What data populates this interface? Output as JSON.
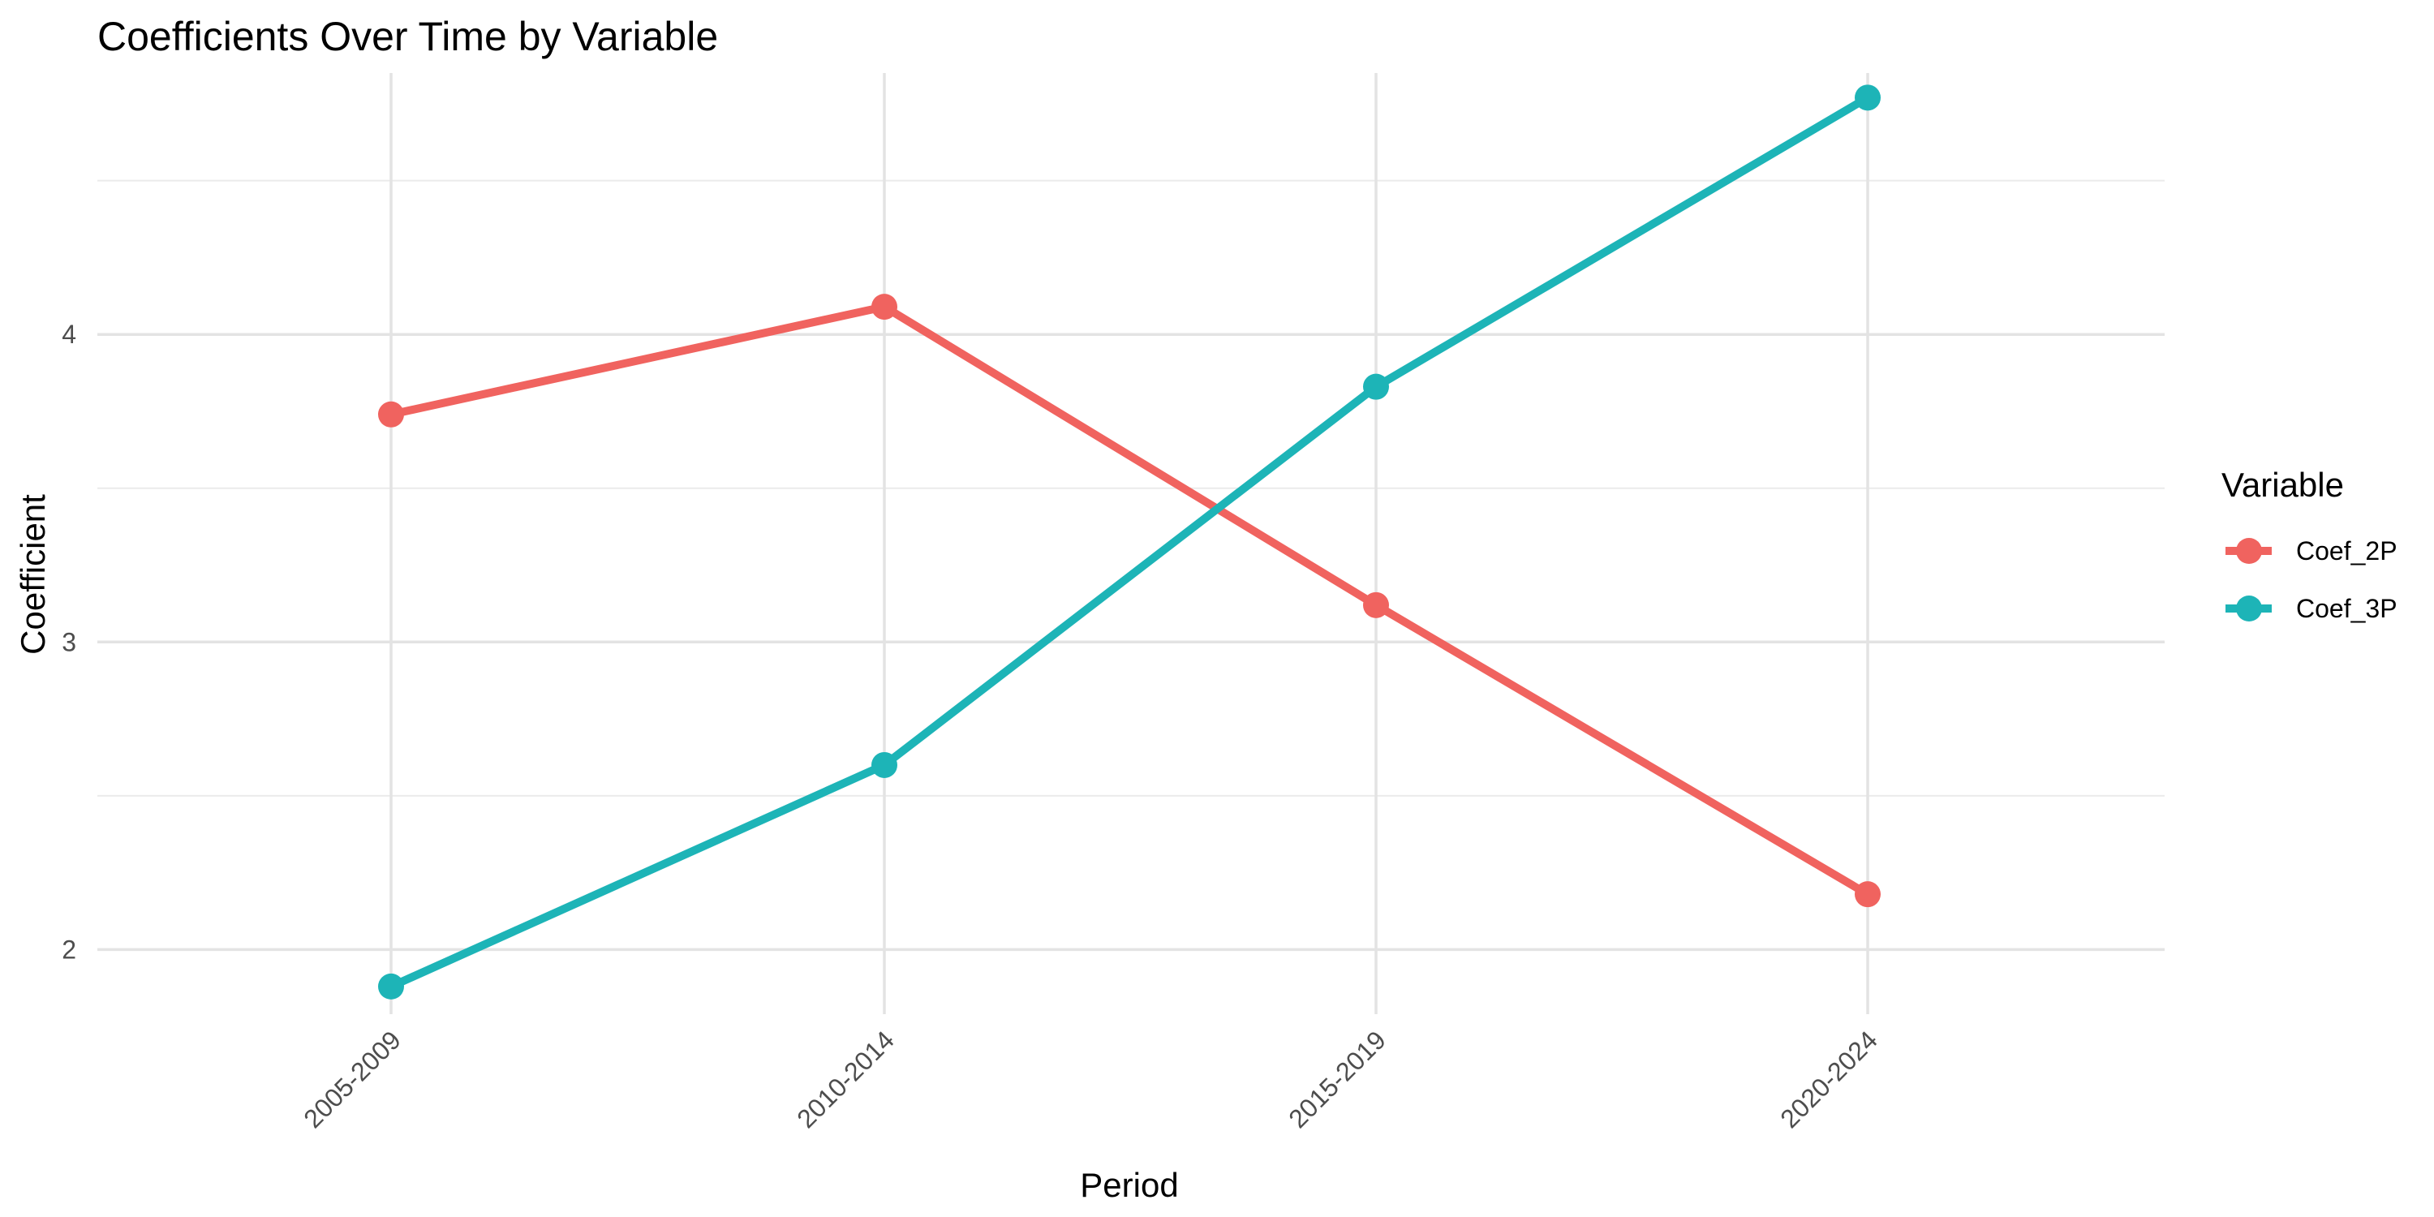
{
  "chart_data": {
    "type": "line",
    "title": "Coefficients Over Time by Variable",
    "xlabel": "Period",
    "ylabel": "Coefficient",
    "categories": [
      "2005-2009",
      "2010-2014",
      "2015-2019",
      "2020-2024"
    ],
    "ylim": [
      1.79,
      4.85
    ],
    "yticks": [
      2,
      3,
      4
    ],
    "grid": true,
    "legend": {
      "title": "Variable",
      "position": "right"
    },
    "series": [
      {
        "name": "Coef_2P",
        "color": "#F0635F",
        "values": [
          3.74,
          4.09,
          3.12,
          2.18
        ]
      },
      {
        "name": "Coef_3P",
        "color": "#1DB4B7",
        "values": [
          1.88,
          2.6,
          3.83,
          4.77
        ]
      }
    ]
  }
}
